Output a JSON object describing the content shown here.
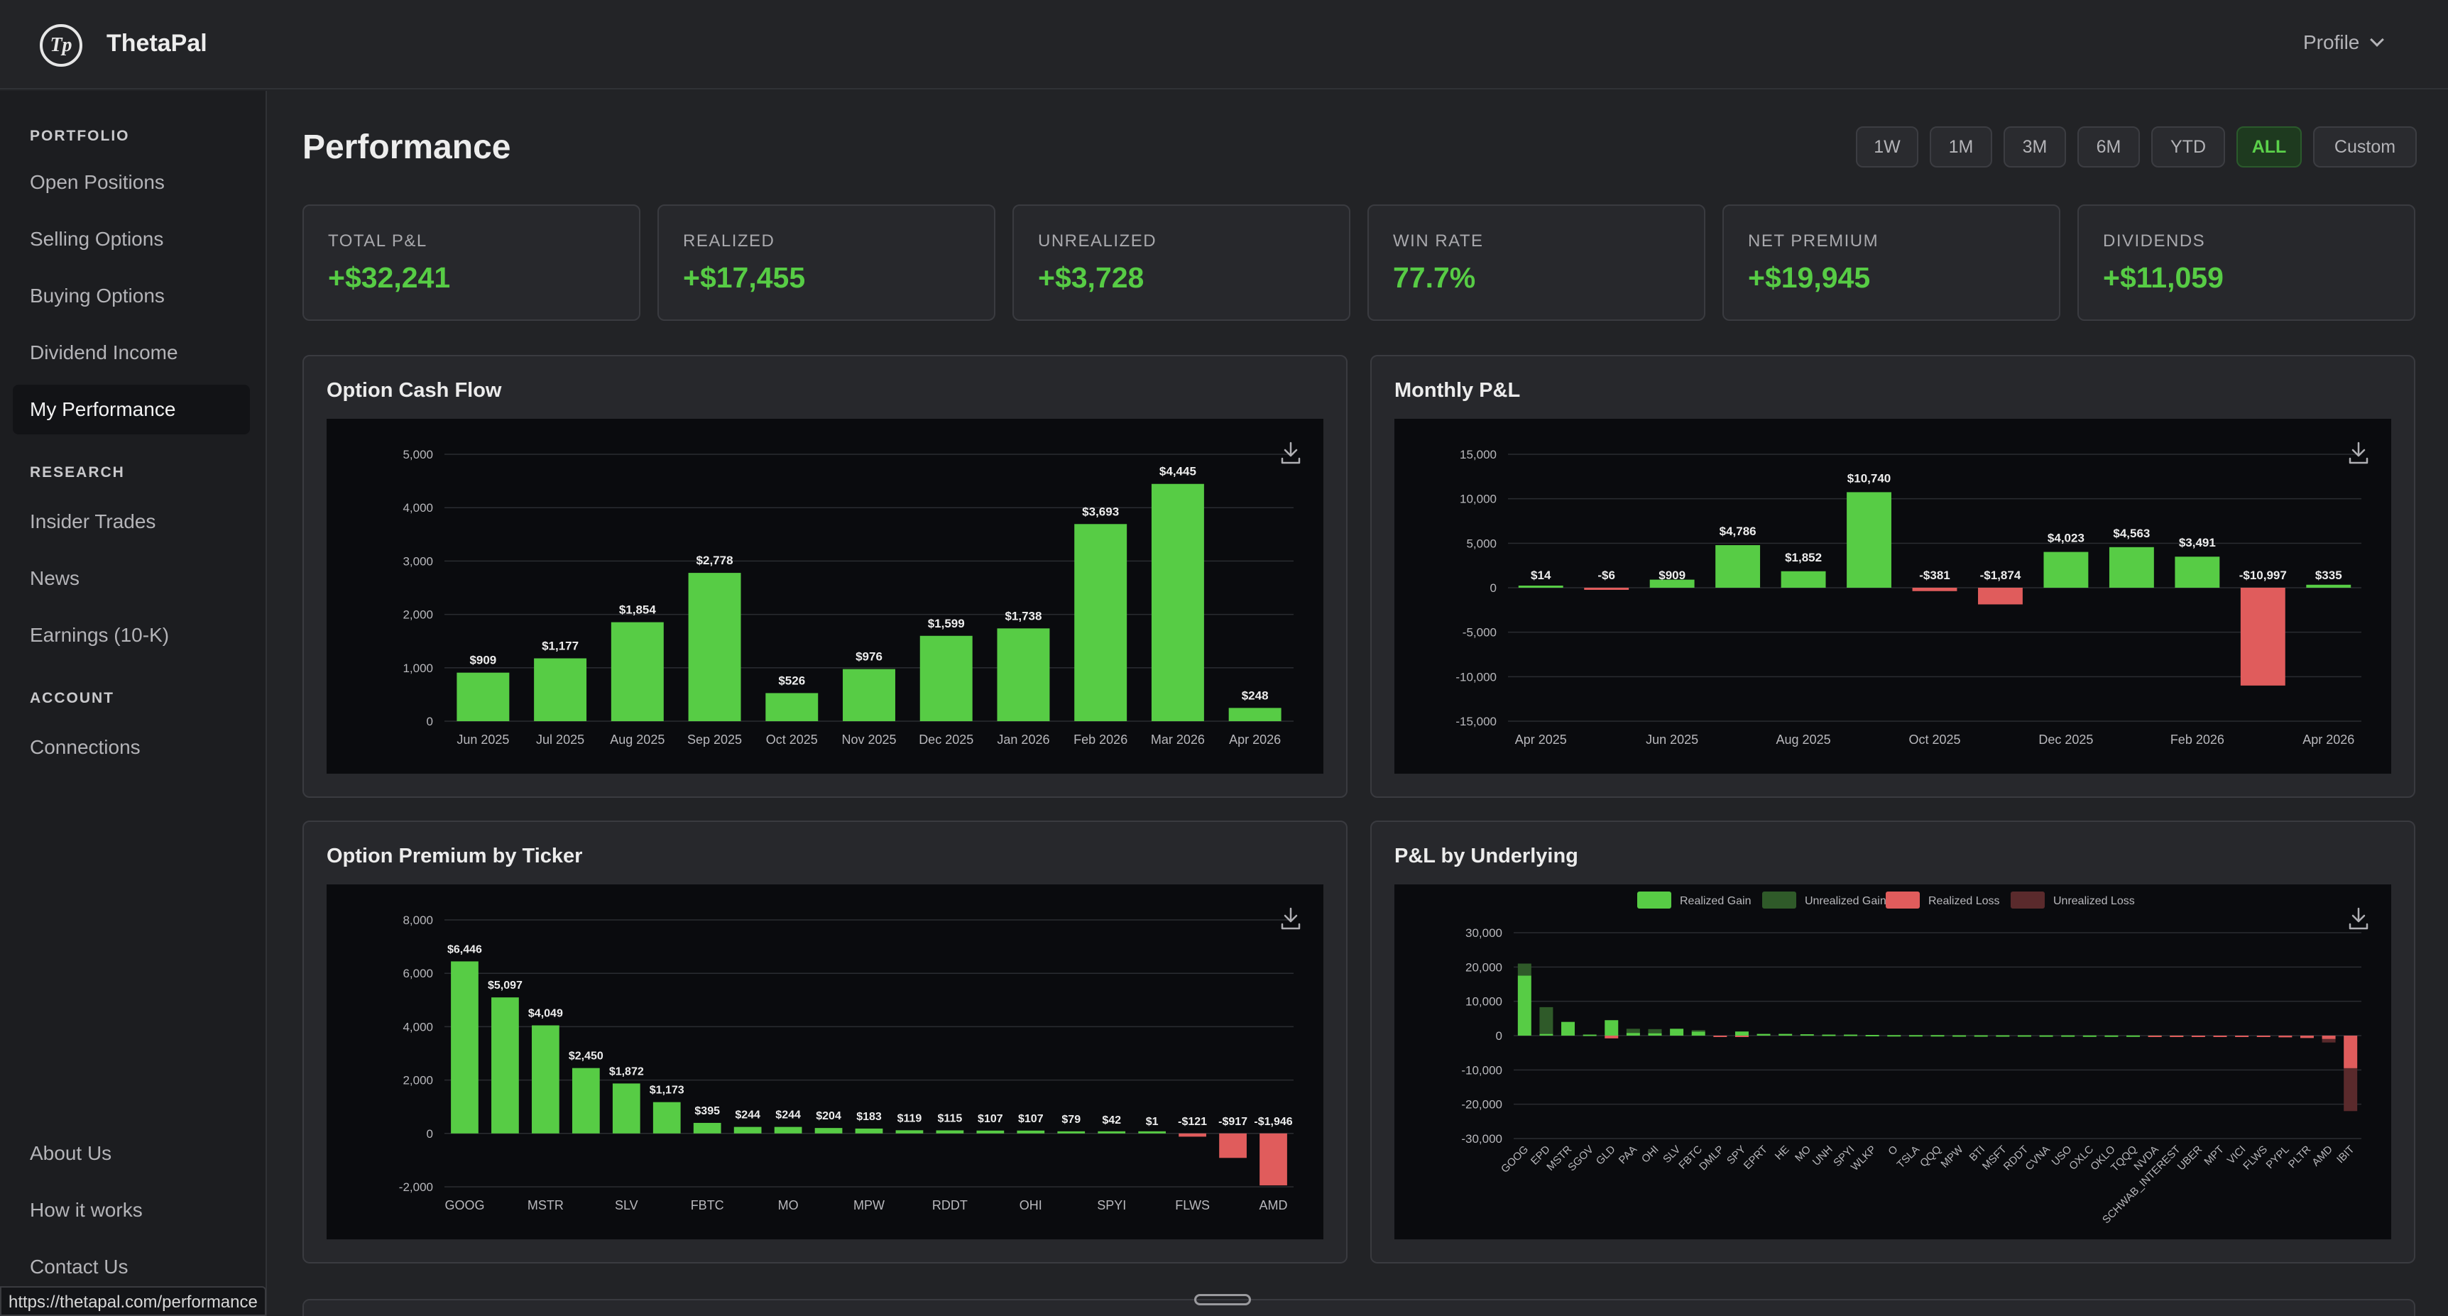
{
  "app": {
    "brand": "ThetaPal",
    "logo_text": "Tp",
    "profile_label": "Profile"
  },
  "sidebar": {
    "sections": [
      {
        "title": "PORTFOLIO",
        "items": [
          "Open Positions",
          "Selling Options",
          "Buying Options",
          "Dividend Income",
          "My Performance"
        ]
      },
      {
        "title": "RESEARCH",
        "items": [
          "Insider Trades",
          "News",
          "Earnings (10-K)"
        ]
      },
      {
        "title": "ACCOUNT",
        "items": [
          "Connections"
        ]
      }
    ],
    "footer_items": [
      "About Us",
      "How it works",
      "Contact Us"
    ],
    "active_item": "My Performance"
  },
  "page": {
    "title": "Performance"
  },
  "range_buttons": [
    "1W",
    "1M",
    "3M",
    "6M",
    "YTD",
    "ALL",
    "Custom"
  ],
  "active_range": "ALL",
  "stats": [
    {
      "label": "TOTAL P&L",
      "value": "+$32,241"
    },
    {
      "label": "REALIZED",
      "value": "+$17,455"
    },
    {
      "label": "UNREALIZED",
      "value": "+$3,728"
    },
    {
      "label": "WIN RATE",
      "value": "77.7%"
    },
    {
      "label": "NET PREMIUM",
      "value": "+$19,945"
    },
    {
      "label": "DIVIDENDS",
      "value": "+$11,059"
    }
  ],
  "colors": {
    "gain": "#57cc45",
    "loss": "#e05c5c",
    "unrealized_gain": "#2f5a29",
    "unrealized_loss": "#5a2a2c",
    "accent_bg": "#1e3a1f"
  },
  "status_url": "https://thetapal.com/performance",
  "chart_data": [
    {
      "panel_title": "Option Cash Flow",
      "type": "bar",
      "categories": [
        "Jun 2025",
        "Jul 2025",
        "Aug 2025",
        "Sep 2025",
        "Oct 2025",
        "Nov 2025",
        "Dec 2025",
        "Jan 2026",
        "Feb 2026",
        "Mar 2026",
        "Apr 2026"
      ],
      "values": [
        909,
        1177,
        1854,
        2778,
        526,
        976,
        1599,
        1738,
        3693,
        4445,
        248
      ],
      "data_labels": [
        "$909",
        "$1,177",
        "$1,854",
        "$2,778",
        "$526",
        "$976",
        "$1,599",
        "$1,738",
        "$3,693",
        "$4,445",
        "$248"
      ],
      "ylim": [
        0,
        5000
      ],
      "yticks": [
        "0",
        "1,000",
        "2,000",
        "3,000",
        "4,000",
        "5,000"
      ],
      "grid": true
    },
    {
      "panel_title": "Monthly P&L",
      "type": "bar",
      "categories": [
        "Apr 2025",
        "May 2025",
        "Jun 2025",
        "Jul 2025",
        "Aug 2025",
        "Sep 2025",
        "Oct 2025",
        "Nov 2025",
        "Dec 2025",
        "Jan 2026",
        "Feb 2026",
        "Mar 2026",
        "Apr 2026"
      ],
      "x_tick_labels": [
        "Apr 2025",
        "",
        "Jun 2025",
        "",
        "Aug 2025",
        "",
        "Oct 2025",
        "",
        "Dec 2025",
        "",
        "Feb 2026",
        "",
        "Apr 2026"
      ],
      "values": [
        14,
        -6,
        909,
        4786,
        1852,
        10740,
        -381,
        -1874,
        4023,
        4563,
        3491,
        -10997,
        335
      ],
      "data_labels": [
        "$14",
        "-$6",
        "$909",
        "$4,786",
        "$1,852",
        "$10,740",
        "-$381",
        "-$1,874",
        "$4,023",
        "$4,563",
        "$3,491",
        "-$10,997",
        "$335"
      ],
      "ylim": [
        -15000,
        15000
      ],
      "yticks": [
        "-15,000",
        "-10,000",
        "-5,000",
        "0",
        "5,000",
        "10,000",
        "15,000"
      ],
      "grid": true
    },
    {
      "panel_title": "Option Premium by Ticker",
      "type": "bar",
      "categories": [
        "GOOG",
        "",
        "MSTR",
        "",
        "SLV",
        "",
        "FBTC",
        "",
        "MO",
        "",
        "MPW",
        "",
        "RDDT",
        "",
        "OHI",
        "",
        "SPYI",
        "",
        "FLWS",
        "",
        "AMD"
      ],
      "values": [
        6446,
        5097,
        4049,
        2450,
        1872,
        1173,
        395,
        244,
        244,
        204,
        183,
        119,
        115,
        107,
        107,
        79,
        42,
        1,
        -121,
        -917,
        -1946
      ],
      "data_labels": [
        "$6,446",
        "$5,097",
        "$4,049",
        "$2,450",
        "$1,872",
        "$1,173",
        "$395",
        "$244",
        "$244",
        "$204",
        "$183",
        "$119",
        "$115",
        "$107",
        "$107",
        "$79",
        "$42",
        "$1",
        "-$121",
        "-$917",
        "-$1,946"
      ],
      "ylim": [
        -2000,
        8000
      ],
      "yticks": [
        "-2,000",
        "0",
        "2,000",
        "4,000",
        "6,000",
        "8,000"
      ],
      "grid": true
    },
    {
      "panel_title": "P&L by Underlying",
      "type": "bar",
      "stacked": true,
      "legend": [
        "Realized Gain",
        "Unrealized Gain",
        "Realized Loss",
        "Unrealized Loss"
      ],
      "legend_position": "top",
      "categories": [
        "GOOG",
        "EPD",
        "MSTR",
        "SGOV",
        "GLD",
        "PAA",
        "OHI",
        "SLV",
        "FBTC",
        "DMLP",
        "SPY",
        "EPRT",
        "HE",
        "MO",
        "UNH",
        "SPYI",
        "WLKP",
        "O",
        "TSLA",
        "QQQ",
        "MPW",
        "BTI",
        "MSFT",
        "RDDT",
        "CVNA",
        "USO",
        "OXLC",
        "OKLO",
        "TQQQ",
        "NVDA",
        "SCHWAB_INTEREST",
        "UBER",
        "MPT",
        "VICI",
        "FLWS",
        "PYPL",
        "PLTR",
        "AMD",
        "IBIT"
      ],
      "series": [
        {
          "name": "Realized Gain",
          "values": [
            17500,
            500,
            4000,
            300,
            4500,
            800,
            700,
            2000,
            1200,
            0,
            1200,
            500,
            500,
            400,
            300,
            300,
            200,
            150,
            150,
            150,
            100,
            100,
            100,
            100,
            80,
            80,
            50,
            50,
            50,
            30,
            20,
            0,
            0,
            0,
            0,
            0,
            0,
            0,
            0
          ]
        },
        {
          "name": "Unrealized Gain",
          "values": [
            3500,
            7800,
            0,
            0,
            0,
            1200,
            1200,
            0,
            400,
            0,
            0,
            0,
            0,
            0,
            0,
            0,
            0,
            0,
            0,
            0,
            0,
            0,
            0,
            0,
            0,
            0,
            0,
            0,
            0,
            0,
            0,
            0,
            0,
            0,
            0,
            0,
            0,
            0,
            0
          ]
        },
        {
          "name": "Realized Loss",
          "values": [
            0,
            0,
            0,
            0,
            -800,
            0,
            0,
            0,
            0,
            -300,
            -200,
            0,
            0,
            0,
            0,
            0,
            0,
            0,
            0,
            0,
            0,
            0,
            0,
            0,
            0,
            0,
            0,
            0,
            0,
            -50,
            -80,
            -100,
            -200,
            -300,
            -400,
            -500,
            -700,
            -1000,
            -9500
          ]
        },
        {
          "name": "Unrealized Loss",
          "values": [
            0,
            0,
            0,
            0,
            0,
            0,
            0,
            0,
            0,
            0,
            0,
            0,
            0,
            0,
            0,
            0,
            0,
            0,
            0,
            0,
            0,
            0,
            0,
            0,
            0,
            0,
            0,
            0,
            0,
            0,
            0,
            0,
            0,
            0,
            0,
            0,
            0,
            -1000,
            -12500
          ]
        }
      ],
      "ylim": [
        -30000,
        30000
      ],
      "yticks": [
        "-30,000",
        "-20,000",
        "-10,000",
        "0",
        "10,000",
        "20,000",
        "30,000"
      ],
      "grid": true
    }
  ]
}
